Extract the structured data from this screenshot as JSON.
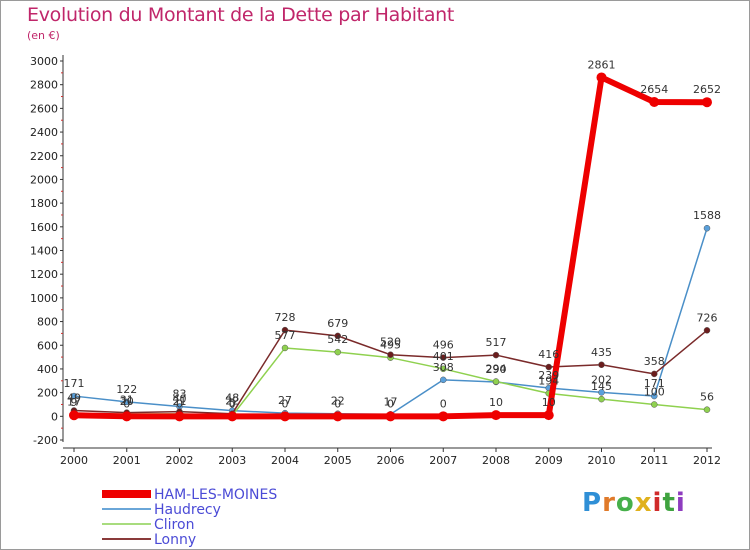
{
  "chart_data": {
    "type": "line",
    "title": "Evolution du Montant de la Dette par Habitant",
    "subtitle": "(en €)",
    "xlabel": "",
    "ylabel": "",
    "ylim": [
      -200,
      3000
    ],
    "yticks": [
      -200,
      0,
      200,
      400,
      600,
      800,
      1000,
      1200,
      1400,
      1600,
      1800,
      2000,
      2200,
      2400,
      2600,
      2800,
      3000
    ],
    "categories": [
      "2000",
      "2001",
      "2002",
      "2003",
      "2004",
      "2005",
      "2006",
      "2007",
      "2008",
      "2009",
      "2010",
      "2011",
      "2012"
    ],
    "grid": false,
    "legend_position": "bottom-left",
    "series": [
      {
        "name": "Haudrecy",
        "color": "#4a8fc8",
        "marker": "#5aa0db",
        "values": [
          171,
          122,
          83,
          48,
          27,
          22,
          17,
          308,
          290,
          239,
          202,
          171,
          1588
        ],
        "labels": [
          "171",
          "122",
          "83",
          "48",
          "27",
          "22",
          "17",
          "308",
          "290",
          "239",
          "202",
          "171",
          "1588"
        ]
      },
      {
        "name": "Cliron",
        "color": "#8fd14f",
        "marker": "#8fd14f",
        "values": [
          17,
          20,
          21,
          5,
          577,
          542,
          495,
          401,
          294,
          194,
          145,
          100,
          56
        ],
        "labels": [
          "17",
          "20",
          "21",
          "5",
          "577",
          "542",
          "495",
          "401",
          "294",
          "194",
          "145",
          "100",
          "56"
        ]
      },
      {
        "name": "Lonny",
        "color": "#7a2a2a",
        "marker": "#6b1d1d",
        "values": [
          49,
          31,
          40,
          22,
          728,
          679,
          520,
          496,
          517,
          416,
          435,
          358,
          726
        ],
        "labels": [
          "49",
          "31",
          "40",
          "22",
          "728",
          "679",
          "520",
          "496",
          "517",
          "416",
          "435",
          "358",
          "726"
        ]
      },
      {
        "name": "HAM-LES-MOINES",
        "color": "#ee0000",
        "marker": "#ee0000",
        "width": 6,
        "values": [
          9,
          0,
          0,
          0,
          0,
          0,
          0,
          0,
          10,
          10,
          2861,
          2654,
          2652
        ],
        "labels": [
          "9",
          "0",
          "0",
          "0",
          "0",
          "0",
          "0",
          "0",
          "10",
          "10",
          "2861",
          "2654",
          "2652"
        ]
      }
    ]
  },
  "legend": {
    "items": [
      {
        "name": "HAM-LES-MOINES",
        "color": "#ee0000",
        "text_color": "#4b4bd6",
        "thick": true
      },
      {
        "name": "Haudrecy",
        "color": "#6aa6d8",
        "text_color": "#4b4bd6"
      },
      {
        "name": "Cliron",
        "color": "#a8dc7e",
        "text_color": "#4b4bd6"
      },
      {
        "name": "Lonny",
        "color": "#8a3a3a",
        "text_color": "#4b4bd6"
      }
    ]
  },
  "logo": {
    "letters": [
      "P",
      "r",
      "o",
      "x",
      "i",
      "t",
      "i"
    ],
    "colors": [
      "#2f8fd6",
      "#e07a2a",
      "#46b04a",
      "#e0b11c",
      "#d02a2a",
      "#3fa33f",
      "#8e3cbf"
    ]
  }
}
